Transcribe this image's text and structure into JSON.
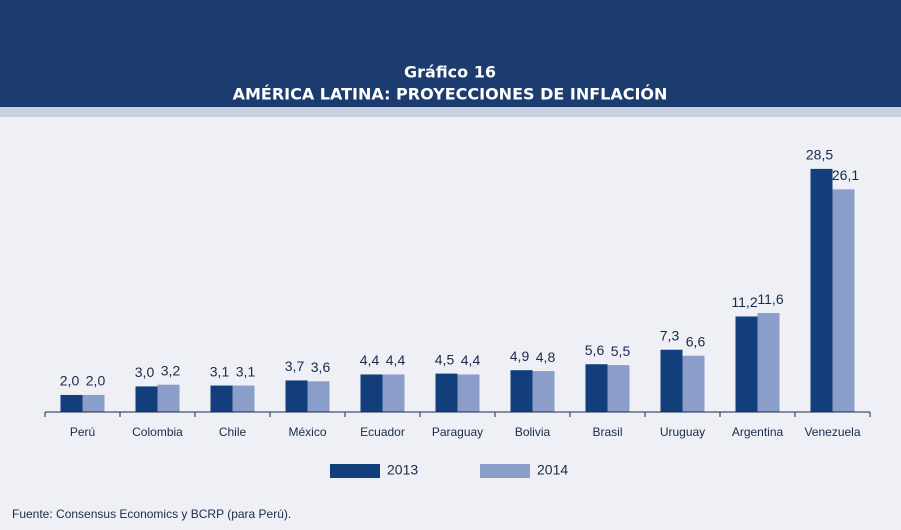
{
  "chart_data": {
    "type": "bar",
    "title": "Gráfico 16",
    "subtitle": "AMÉRICA LATINA: PROYECCIONES  DE INFLACIÓN",
    "categories": [
      "Perú",
      "Colombia",
      "Chile",
      "México",
      "Ecuador",
      "Paraguay",
      "Bolivia",
      "Brasil",
      "Uruguay",
      "Argentina",
      "Venezuela"
    ],
    "series": [
      {
        "name": "2013",
        "color": "#123e7c",
        "values": [
          2.0,
          3.0,
          3.1,
          3.7,
          4.4,
          4.5,
          4.9,
          5.6,
          7.3,
          11.2,
          28.5
        ],
        "value_labels": [
          "2,0",
          "3,0",
          "3,1",
          "3,7",
          "4,4",
          "4,5",
          "4,9",
          "5,6",
          "7,3",
          "11,2",
          "28,5"
        ]
      },
      {
        "name": "2014",
        "color": "#8a9ec9",
        "values": [
          2.0,
          3.2,
          3.1,
          3.6,
          4.4,
          4.4,
          4.8,
          5.5,
          6.6,
          11.6,
          26.1
        ],
        "value_labels": [
          "2,0",
          "3,2",
          "3,1",
          "3,6",
          "4,4",
          "4,4",
          "4,8",
          "5,5",
          "6,6",
          "11,6",
          "26,1"
        ]
      }
    ],
    "source": "Fuente: Consensus Economics y BCRP (para Perú)."
  }
}
